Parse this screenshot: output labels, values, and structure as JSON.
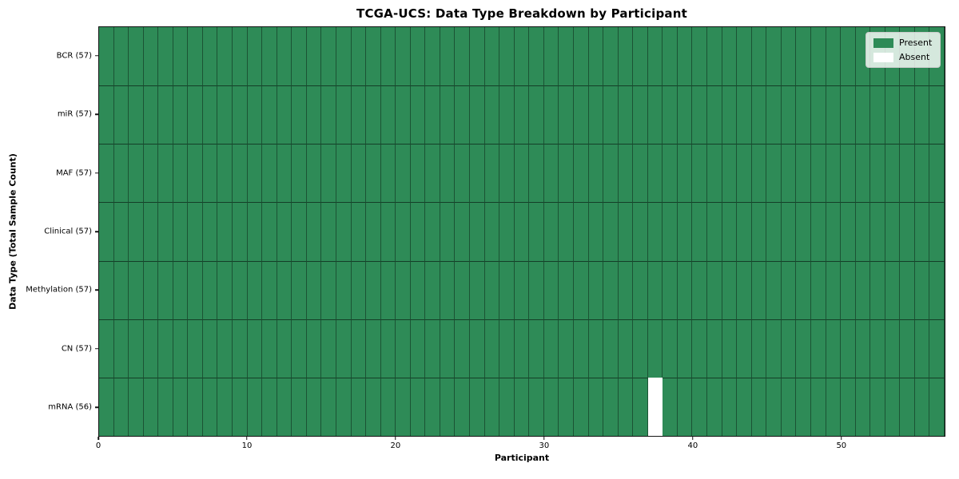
{
  "title": "TCGA-UCS: Data Type Breakdown by Participant",
  "chart_data": {
    "type": "heatmap",
    "title": "TCGA-UCS: Data Type Breakdown by Participant",
    "xlabel": "Participant",
    "ylabel": "Data Type (Total Sample Count)",
    "n_participants": 57,
    "x_range": [
      0,
      57
    ],
    "x_ticks": [
      0,
      10,
      20,
      30,
      40,
      50
    ],
    "grid": true,
    "rows": [
      {
        "label": "BCR (57)",
        "data_type": "BCR",
        "present_count": 57,
        "absent_participant_indices": []
      },
      {
        "label": "miR (57)",
        "data_type": "miR",
        "present_count": 57,
        "absent_participant_indices": []
      },
      {
        "label": "MAF (57)",
        "data_type": "MAF",
        "present_count": 57,
        "absent_participant_indices": []
      },
      {
        "label": "Clinical (57)",
        "data_type": "Clinical",
        "present_count": 57,
        "absent_participant_indices": []
      },
      {
        "label": "Methylation (57)",
        "data_type": "Methylation",
        "present_count": 57,
        "absent_participant_indices": []
      },
      {
        "label": "CN (57)",
        "data_type": "CN",
        "present_count": 57,
        "absent_participant_indices": []
      },
      {
        "label": "mRNA (56)",
        "data_type": "mRNA",
        "present_count": 56,
        "absent_participant_indices": [
          37
        ]
      }
    ],
    "legend": {
      "position": "upper right",
      "entries": [
        {
          "label": "Present",
          "color": "#2E8B57"
        },
        {
          "label": "Absent",
          "color": "#FFFFFF"
        }
      ]
    },
    "colors": {
      "present": "#2E8B57",
      "absent": "#FFFFFF"
    }
  }
}
